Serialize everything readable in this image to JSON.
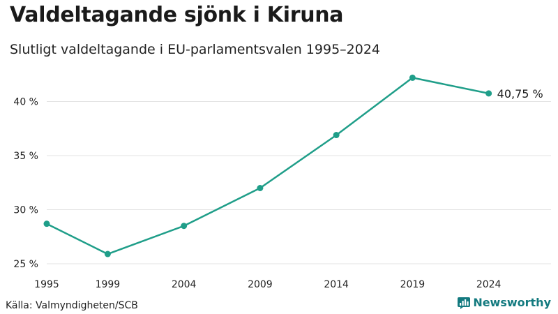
{
  "title": "Valdeltagande sjönk i Kiruna",
  "subtitle": "Slutligt valdeltagande i EU-parlamentsvalen 1995–2024",
  "source": "Källa: Valmyndigheten/SCB",
  "brand": "Newsworthy",
  "colors": {
    "line": "#1f9e89",
    "grid": "#e3e3e3",
    "brand": "#137a7f"
  },
  "chart_data": {
    "type": "line",
    "title": "Valdeltagande sjönk i Kiruna",
    "subtitle": "Slutligt valdeltagande i EU-parlamentsvalen 1995–2024",
    "x": [
      1995,
      1999,
      2004,
      2009,
      2014,
      2019,
      2024
    ],
    "x_tick_labels": [
      "1995",
      "1999",
      "2004",
      "2009",
      "2014",
      "2019",
      "2024"
    ],
    "y_ticks": [
      25,
      30,
      35,
      40
    ],
    "y_tick_labels": [
      "25 %",
      "30 %",
      "35 %",
      "40 %"
    ],
    "ylim": [
      24.5,
      44.4
    ],
    "xlim": [
      1995,
      2028
    ],
    "grid": true,
    "series": [
      {
        "values": [
          28.7,
          25.9,
          28.5,
          32.0,
          36.9,
          42.2,
          40.75
        ],
        "end_label": "40,75 %"
      }
    ]
  }
}
